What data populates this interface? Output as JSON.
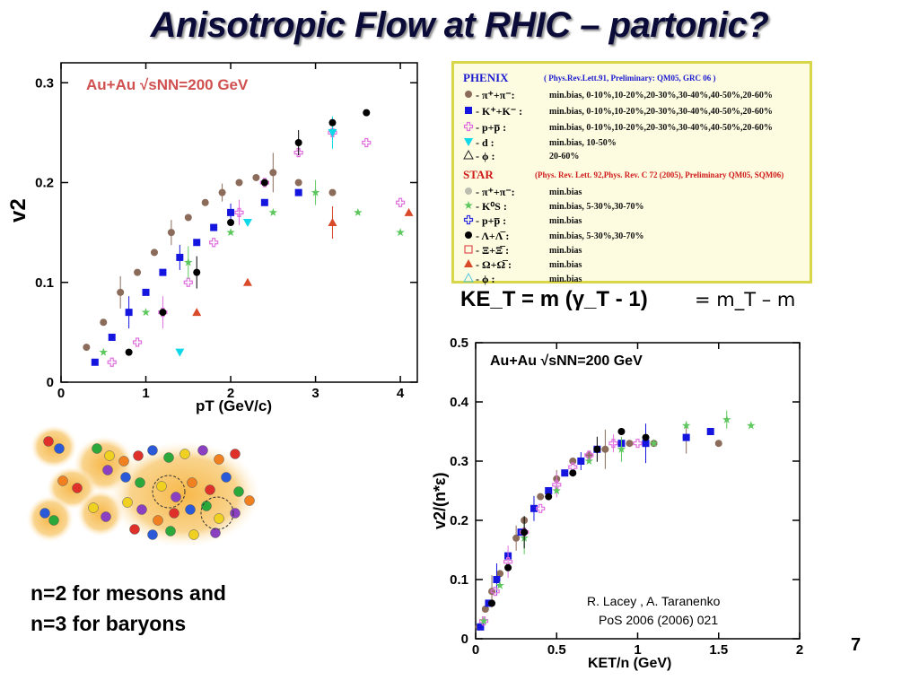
{
  "title": "Anisotropic Flow  at RHIC – partonic?",
  "left_plot": {
    "ylabel": "v2",
    "xlabel": "pT (GeV/c)",
    "annotation": "Au+Au √sNN=200 GeV",
    "x_ticks": [
      "0",
      "1",
      "2",
      "3",
      "4"
    ],
    "y_ticks": [
      "0",
      "0.1",
      "0.2",
      "0.3"
    ]
  },
  "legend": {
    "phenix_title": "PHENIX",
    "phenix_ref": "( Phys.Rev.Lett.91, Preliminary: QM05, GRC 06 )",
    "star_title": "STAR",
    "star_ref": "(Phys. Rev. Lett. 92,Phys. Rev. C 72 (2005), Preliminary QM05, SQM06)",
    "rows": [
      {
        "label": "- π⁺+π⁻:",
        "desc": "min.bias, 0-10%,10-20%,20-30%,30-40%,40-50%,20-60%",
        "marker": "circle",
        "color": "#8b6b5a"
      },
      {
        "label": "- K⁺+K⁻ :",
        "desc": "min.bias, 0-10%,10-20%,20-30%,30-40%,40-50%,20-60%",
        "marker": "square",
        "color": "#1515e0"
      },
      {
        "label": "- p+p̅ :",
        "desc": "min.bias, 0-10%,10-20%,20-30%,30-40%,40-50%,20-60%",
        "marker": "cross-open",
        "color": "#e070e0"
      },
      {
        "label": "- d :",
        "desc": "min.bias, 10-50%",
        "marker": "tri-down",
        "color": "#10d8e8"
      },
      {
        "label": "- ϕ :",
        "desc": "20-60%",
        "marker": "tri-open",
        "color": "#222222"
      },
      {
        "label": "- π⁺+π⁻:",
        "desc": "min.bias",
        "marker": "circle",
        "color": "#bdbdb0"
      },
      {
        "label": "- K⁰S :",
        "desc": "min.bias, 5-30%,30-70%",
        "marker": "star",
        "color": "#5ec85e"
      },
      {
        "label": "- p+p̅ :",
        "desc": "min.bias",
        "marker": "cross-open",
        "color": "#3030e0"
      },
      {
        "label": "- Λ+Λ̅ :",
        "desc": "min.bias, 5-30%,30-70%",
        "marker": "circle",
        "color": "#000000"
      },
      {
        "label": "- Ξ+Ξ̅ :",
        "desc": "min.bias",
        "marker": "square-open",
        "color": "#e05050"
      },
      {
        "label": "- Ω+Ω̅ :",
        "desc": "min.bias",
        "marker": "tri-up",
        "color": "#d84a2a"
      },
      {
        "label": "- ϕ :",
        "desc": "min.bias",
        "marker": "tri-open",
        "color": "#55c8e0"
      }
    ]
  },
  "ke_formula": "KE_T = m (γ_T - 1)",
  "mt_formula": "= m_T – m",
  "right_plot": {
    "ylabel": "v2/(n*ε)",
    "xlabel": "KET/n (GeV)",
    "annotation": "Au+Au √sNN=200 GeV",
    "x_ticks": [
      "0",
      "0.5",
      "1",
      "1.5",
      "2"
    ],
    "y_ticks": [
      "0",
      "0.1",
      "0.2",
      "0.3",
      "0.4",
      "0.5"
    ]
  },
  "n_text_line1": "n=2 for mesons and",
  "n_text_line2": "n=3 for baryons",
  "credit_line1": "R. Lacey , A. Taranenko",
  "credit_line2": "PoS 2006 (2006) 021",
  "page_number": "7",
  "chart_data": [
    {
      "type": "scatter",
      "title": "",
      "xlabel": "pT (GeV/c)",
      "ylabel": "v2",
      "xlim": [
        0,
        4.2
      ],
      "ylim": [
        0,
        0.32
      ],
      "series": [
        {
          "name": "π⁺+π⁻ (PHENIX)",
          "color": "#8b6b5a",
          "x": [
            0.3,
            0.5,
            0.7,
            0.9,
            1.1,
            1.3,
            1.5,
            1.7,
            1.9,
            2.1,
            2.3,
            2.5,
            2.8,
            3.2
          ],
          "y": [
            0.035,
            0.06,
            0.09,
            0.11,
            0.13,
            0.15,
            0.165,
            0.18,
            0.19,
            0.2,
            0.205,
            0.21,
            0.2,
            0.19
          ]
        },
        {
          "name": "K⁺+K⁻ (PHENIX)",
          "color": "#1515e0",
          "x": [
            0.4,
            0.6,
            0.8,
            1.0,
            1.2,
            1.4,
            1.6,
            1.8,
            2.0,
            2.4,
            2.8
          ],
          "y": [
            0.02,
            0.045,
            0.07,
            0.09,
            0.11,
            0.125,
            0.14,
            0.155,
            0.17,
            0.18,
            0.19
          ]
        },
        {
          "name": "p+p̅ (PHENIX)",
          "color": "#e070e0",
          "x": [
            0.6,
            0.9,
            1.2,
            1.5,
            1.8,
            2.1,
            2.4,
            2.8,
            3.2,
            3.6,
            4.0
          ],
          "y": [
            0.02,
            0.04,
            0.07,
            0.1,
            0.14,
            0.17,
            0.2,
            0.23,
            0.25,
            0.24,
            0.18
          ]
        },
        {
          "name": "d",
          "color": "#10d8e8",
          "x": [
            1.4,
            2.2,
            3.2
          ],
          "y": [
            0.03,
            0.16,
            0.25
          ]
        },
        {
          "name": "K⁰S (STAR)",
          "color": "#5ec85e",
          "x": [
            0.5,
            1.0,
            1.5,
            2.0,
            2.5,
            3.0,
            3.5,
            4.0
          ],
          "y": [
            0.03,
            0.07,
            0.12,
            0.15,
            0.17,
            0.19,
            0.17,
            0.15
          ]
        },
        {
          "name": "Λ+Λ̅ (STAR)",
          "color": "#000000",
          "x": [
            0.8,
            1.2,
            1.6,
            2.0,
            2.4,
            2.8,
            3.2,
            3.6
          ],
          "y": [
            0.03,
            0.07,
            0.11,
            0.16,
            0.2,
            0.24,
            0.26,
            0.27
          ]
        },
        {
          "name": "Ω+Ω̅ (STAR)",
          "color": "#d84a2a",
          "x": [
            1.6,
            2.2,
            3.2,
            4.1
          ],
          "y": [
            0.07,
            0.1,
            0.16,
            0.17
          ]
        }
      ]
    },
    {
      "type": "scatter",
      "title": "",
      "xlabel": "KET/n (GeV)",
      "ylabel": "v2/(n*ε)",
      "xlim": [
        0,
        2
      ],
      "ylim": [
        0,
        0.5
      ],
      "series": [
        {
          "name": "π⁺+π⁻",
          "color": "#8b6b5a",
          "x": [
            0.02,
            0.06,
            0.1,
            0.15,
            0.2,
            0.25,
            0.3,
            0.4,
            0.5,
            0.6,
            0.7,
            0.8,
            0.95,
            1.1,
            1.3,
            1.5
          ],
          "y": [
            0.02,
            0.05,
            0.08,
            0.11,
            0.14,
            0.17,
            0.2,
            0.24,
            0.27,
            0.3,
            0.31,
            0.32,
            0.33,
            0.33,
            0.34,
            0.33
          ]
        },
        {
          "name": "K⁺+K⁻",
          "color": "#1515e0",
          "x": [
            0.03,
            0.08,
            0.13,
            0.2,
            0.28,
            0.36,
            0.45,
            0.55,
            0.65,
            0.75,
            0.9,
            1.05,
            1.3,
            1.45
          ],
          "y": [
            0.02,
            0.06,
            0.1,
            0.14,
            0.18,
            0.22,
            0.25,
            0.28,
            0.3,
            0.32,
            0.33,
            0.33,
            0.34,
            0.35
          ]
        },
        {
          "name": "p+p̅",
          "color": "#e070e0",
          "x": [
            0.05,
            0.12,
            0.2,
            0.3,
            0.4,
            0.5,
            0.6,
            0.7,
            0.85,
            1.0
          ],
          "y": [
            0.03,
            0.08,
            0.13,
            0.18,
            0.22,
            0.26,
            0.29,
            0.31,
            0.33,
            0.33
          ]
        },
        {
          "name": "K⁰S",
          "color": "#5ec85e",
          "x": [
            0.05,
            0.15,
            0.3,
            0.5,
            0.7,
            0.9,
            1.1,
            1.3,
            1.55,
            1.7
          ],
          "y": [
            0.03,
            0.09,
            0.17,
            0.25,
            0.3,
            0.32,
            0.33,
            0.36,
            0.37,
            0.36
          ]
        },
        {
          "name": "Λ+Λ̅",
          "color": "#000000",
          "x": [
            0.1,
            0.2,
            0.3,
            0.45,
            0.6,
            0.75,
            0.9,
            1.05
          ],
          "y": [
            0.06,
            0.12,
            0.18,
            0.24,
            0.28,
            0.32,
            0.35,
            0.34
          ]
        }
      ]
    }
  ]
}
